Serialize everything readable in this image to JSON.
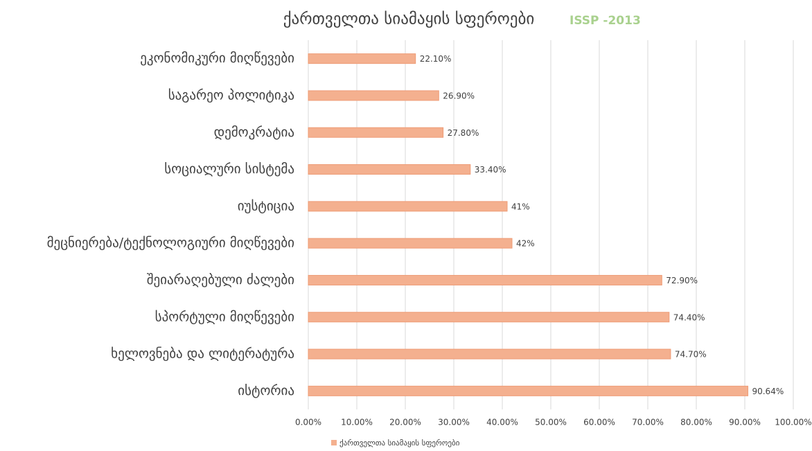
{
  "chart_data": {
    "type": "bar",
    "orientation": "horizontal",
    "title": "ქართველთა სიამაყის სფეროები",
    "subtitle": "ISSP -2013",
    "categories": [
      "ეკონომიკური მიღწევები",
      "საგარეო პოლიტიკა",
      "დემოკრატია",
      "სოციალური სისტემა",
      "იუსტიცია",
      "მეცნიერება/ტექნოლოგიური მიღწევები",
      "შეიარაღებული ძალები",
      "სპორტული მიღწევები",
      "ხელოვნება და ლიტერატურა",
      "ისტორია"
    ],
    "series": [
      {
        "name": "ქართველთა სიამაყის სფეროები",
        "color": "#f4b08f",
        "values": [
          22.1,
          26.9,
          27.8,
          33.4,
          41,
          42,
          72.9,
          74.4,
          74.7,
          90.64
        ],
        "value_labels": [
          "22.10%",
          "26.90%",
          "27.80%",
          "33.40%",
          "41%",
          "42%",
          "72.90%",
          "74.40%",
          "74.70%",
          "90.64%"
        ]
      }
    ],
    "xlim": [
      0,
      100
    ],
    "xticks": [
      {
        "value": 0,
        "label": "0.00%"
      },
      {
        "value": 10,
        "label": "10.00%"
      },
      {
        "value": 20,
        "label": "20.00%"
      },
      {
        "value": 30,
        "label": "30.00%"
      },
      {
        "value": 40,
        "label": "40.00%"
      },
      {
        "value": 50,
        "label": "50.00%"
      },
      {
        "value": 60,
        "label": "60.00%"
      },
      {
        "value": 70,
        "label": "70.00%"
      },
      {
        "value": 80,
        "label": "80.00%"
      },
      {
        "value": 90,
        "label": "90.00%"
      },
      {
        "value": 100,
        "label": "100.00%"
      }
    ],
    "grid": true,
    "legend": "bottom"
  }
}
